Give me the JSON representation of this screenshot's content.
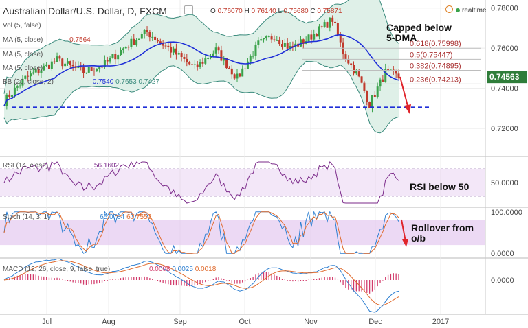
{
  "header": {
    "symbol": "Australian Dollar/U.S. Dollar, D, FXCM",
    "ohlc": [
      {
        "k": "O",
        "v": "0.76070"
      },
      {
        "k": "H",
        "v": "0.76140"
      },
      {
        "k": "L",
        "v": "0.75680"
      },
      {
        "k": "C",
        "v": "0.75871"
      }
    ],
    "realtime": "realtime"
  },
  "indicators": {
    "vol": "Vol (5, false)",
    "ma1": "MA (5, close)",
    "ma1_value": "0.7564",
    "ma2": "MA (5, close)",
    "ma3": "MA (5, close)",
    "bb": "BB (20, close, 2)",
    "bb_values": [
      "0.7540",
      "0.7653",
      "0.7427"
    ],
    "rsi": "RSI (14, close)",
    "rsi_value": "56.1602",
    "stoch": "Stoch (14, 3, 1)",
    "stoch_values": [
      "65.0784",
      "60.7552"
    ],
    "macd": "MACD (12, 26, close, 9, false, true)",
    "macd_values": [
      "0.0008",
      "0.0025",
      "0.0018"
    ]
  },
  "annotations": {
    "capped": [
      "Capped below",
      "5-DMA"
    ],
    "rsi": "RSI below 50",
    "rollover": [
      "Rollover from",
      "o/b"
    ]
  },
  "colors": {
    "up": "#3aa24a",
    "down": "#c0392b",
    "ma": "#1f2fd8",
    "bb_fill": "#dff0e8",
    "bb_line": "#3a8a7c",
    "rsi": "#7b2a8a",
    "stoch_k": "#2d7fd1",
    "stoch_d": "#e06a2c",
    "macd": "#2d7fd1",
    "signal": "#e06a2c",
    "hist": "#d23b6b",
    "band": "#e4c9f0",
    "arrow": "#e0242b"
  },
  "chart_data": {
    "type": "line",
    "title": "Australian Dollar/U.S. Dollar, D, FXCM",
    "x_labels": [
      "Jul",
      "Aug",
      "Sep",
      "Oct",
      "Nov",
      "Dec",
      "2017"
    ],
    "price_axis": {
      "ticks": [
        "0.78000",
        "0.76000",
        "0.74000",
        "0.72000"
      ],
      "values": [
        0.78,
        0.76,
        0.74,
        0.72
      ],
      "range": [
        0.706,
        0.784
      ]
    },
    "last_price": "0.74563",
    "fibonacci": [
      {
        "label": "0.618(0.75998)",
        "value": 0.75998
      },
      {
        "label": "0.5(0.75447)",
        "value": 0.75447
      },
      {
        "label": "0.382(0.74895)",
        "value": 0.74895
      },
      {
        "label": "0.236(0.74213)",
        "value": 0.74213
      }
    ],
    "support_level": 0.7305,
    "rsi_axis": {
      "ticks": [
        "50.0000"
      ],
      "values": [
        50
      ],
      "range": [
        16,
        86
      ]
    },
    "stoch_axis": {
      "ticks": [
        "100.0000",
        "0.0000"
      ],
      "values": [
        100,
        0
      ],
      "range": [
        -8,
        108
      ],
      "band": [
        20,
        80
      ]
    },
    "macd_axis": {
      "ticks": [
        "0.0000"
      ],
      "values": [
        0
      ],
      "range": [
        -0.008,
        0.005
      ]
    }
  }
}
